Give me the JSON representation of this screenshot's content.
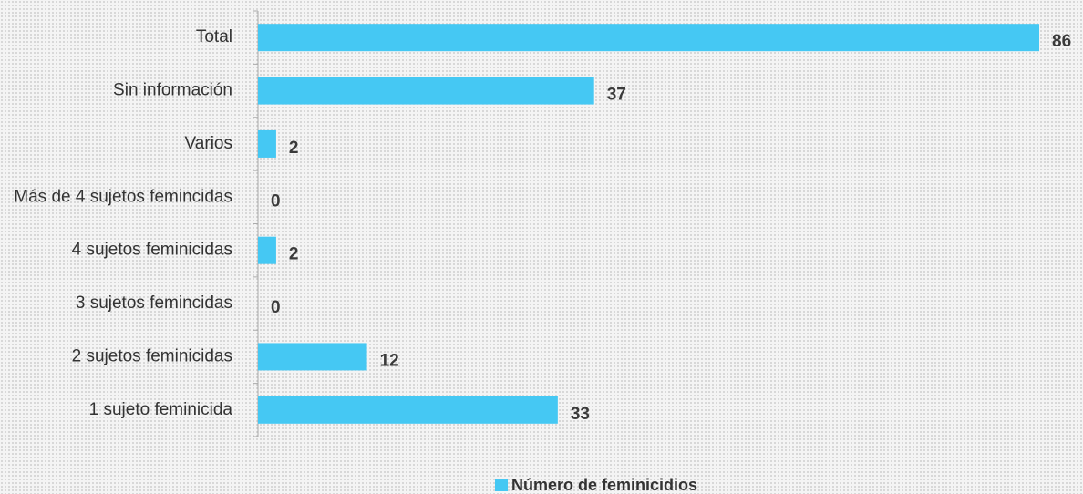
{
  "chart_data": {
    "type": "barh",
    "categories": [
      "Total",
      "Sin información",
      "Varios",
      "Más de 4 sujetos femincidas",
      "4 sujetos feminicidas",
      "3 sujetos femincidas",
      "2 sujetos feminicidas",
      "1 sujeto feminicida"
    ],
    "series": [
      {
        "name": "Número de feminicidios",
        "color": "#45c8f3",
        "values": [
          86,
          37,
          2,
          0,
          2,
          0,
          12,
          33
        ]
      }
    ],
    "xlim": [
      0,
      86
    ],
    "legend": "bottom"
  }
}
